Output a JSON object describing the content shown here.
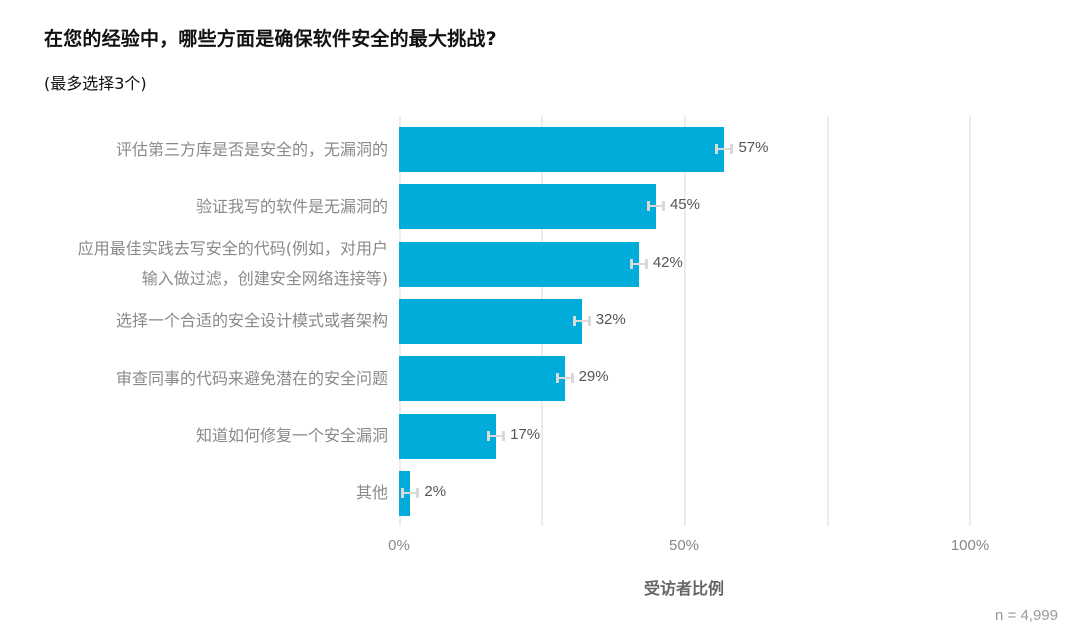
{
  "chart_data": {
    "type": "bar",
    "orientation": "horizontal",
    "title": "在您的经验中，哪些方面是确保软件安全的最大挑战?",
    "subtitle": "(最多选择3个)",
    "xlabel": "受访者比例",
    "ylabel": "",
    "xlim": [
      0,
      100
    ],
    "x_ticks": [
      "0%",
      "50%",
      "100%"
    ],
    "grid": true,
    "error_bars": true,
    "categories": [
      "评估第三方库是否是安全的，无漏洞的",
      "验证我写的软件是无漏洞的",
      "应用最佳实践去写安全的代码(例如，对用户输入做过滤，创建安全网络连接等)",
      "选择一个合适的安全设计模式或者架构",
      "审查同事的代码来避免潜在的安全问题",
      "知道如何修复一个安全漏洞",
      "其他"
    ],
    "values": [
      57,
      45,
      42,
      32,
      29,
      17,
      2
    ],
    "value_labels": [
      "57%",
      "45%",
      "42%",
      "32%",
      "29%",
      "17%",
      "2%"
    ],
    "note": "n =  4,999",
    "bar_color": "#00acd9"
  },
  "rows": [
    {
      "lines": [
        "评估第三方库是否是安全的，无漏洞的"
      ],
      "label": "57%"
    },
    {
      "lines": [
        "验证我写的软件是无漏洞的"
      ],
      "label": "45%"
    },
    {
      "lines": [
        "应用最佳实践去写安全的代码(例如，对用户",
        "输入做过滤，创建安全网络连接等)"
      ],
      "label": "42%"
    },
    {
      "lines": [
        "选择一个合适的安全设计模式或者架构"
      ],
      "label": "32%"
    },
    {
      "lines": [
        "审查同事的代码来避免潜在的安全问题"
      ],
      "label": "29%"
    },
    {
      "lines": [
        "知道如何修复一个安全漏洞"
      ],
      "label": "17%"
    },
    {
      "lines": [
        "其他"
      ],
      "label": "2%"
    }
  ]
}
